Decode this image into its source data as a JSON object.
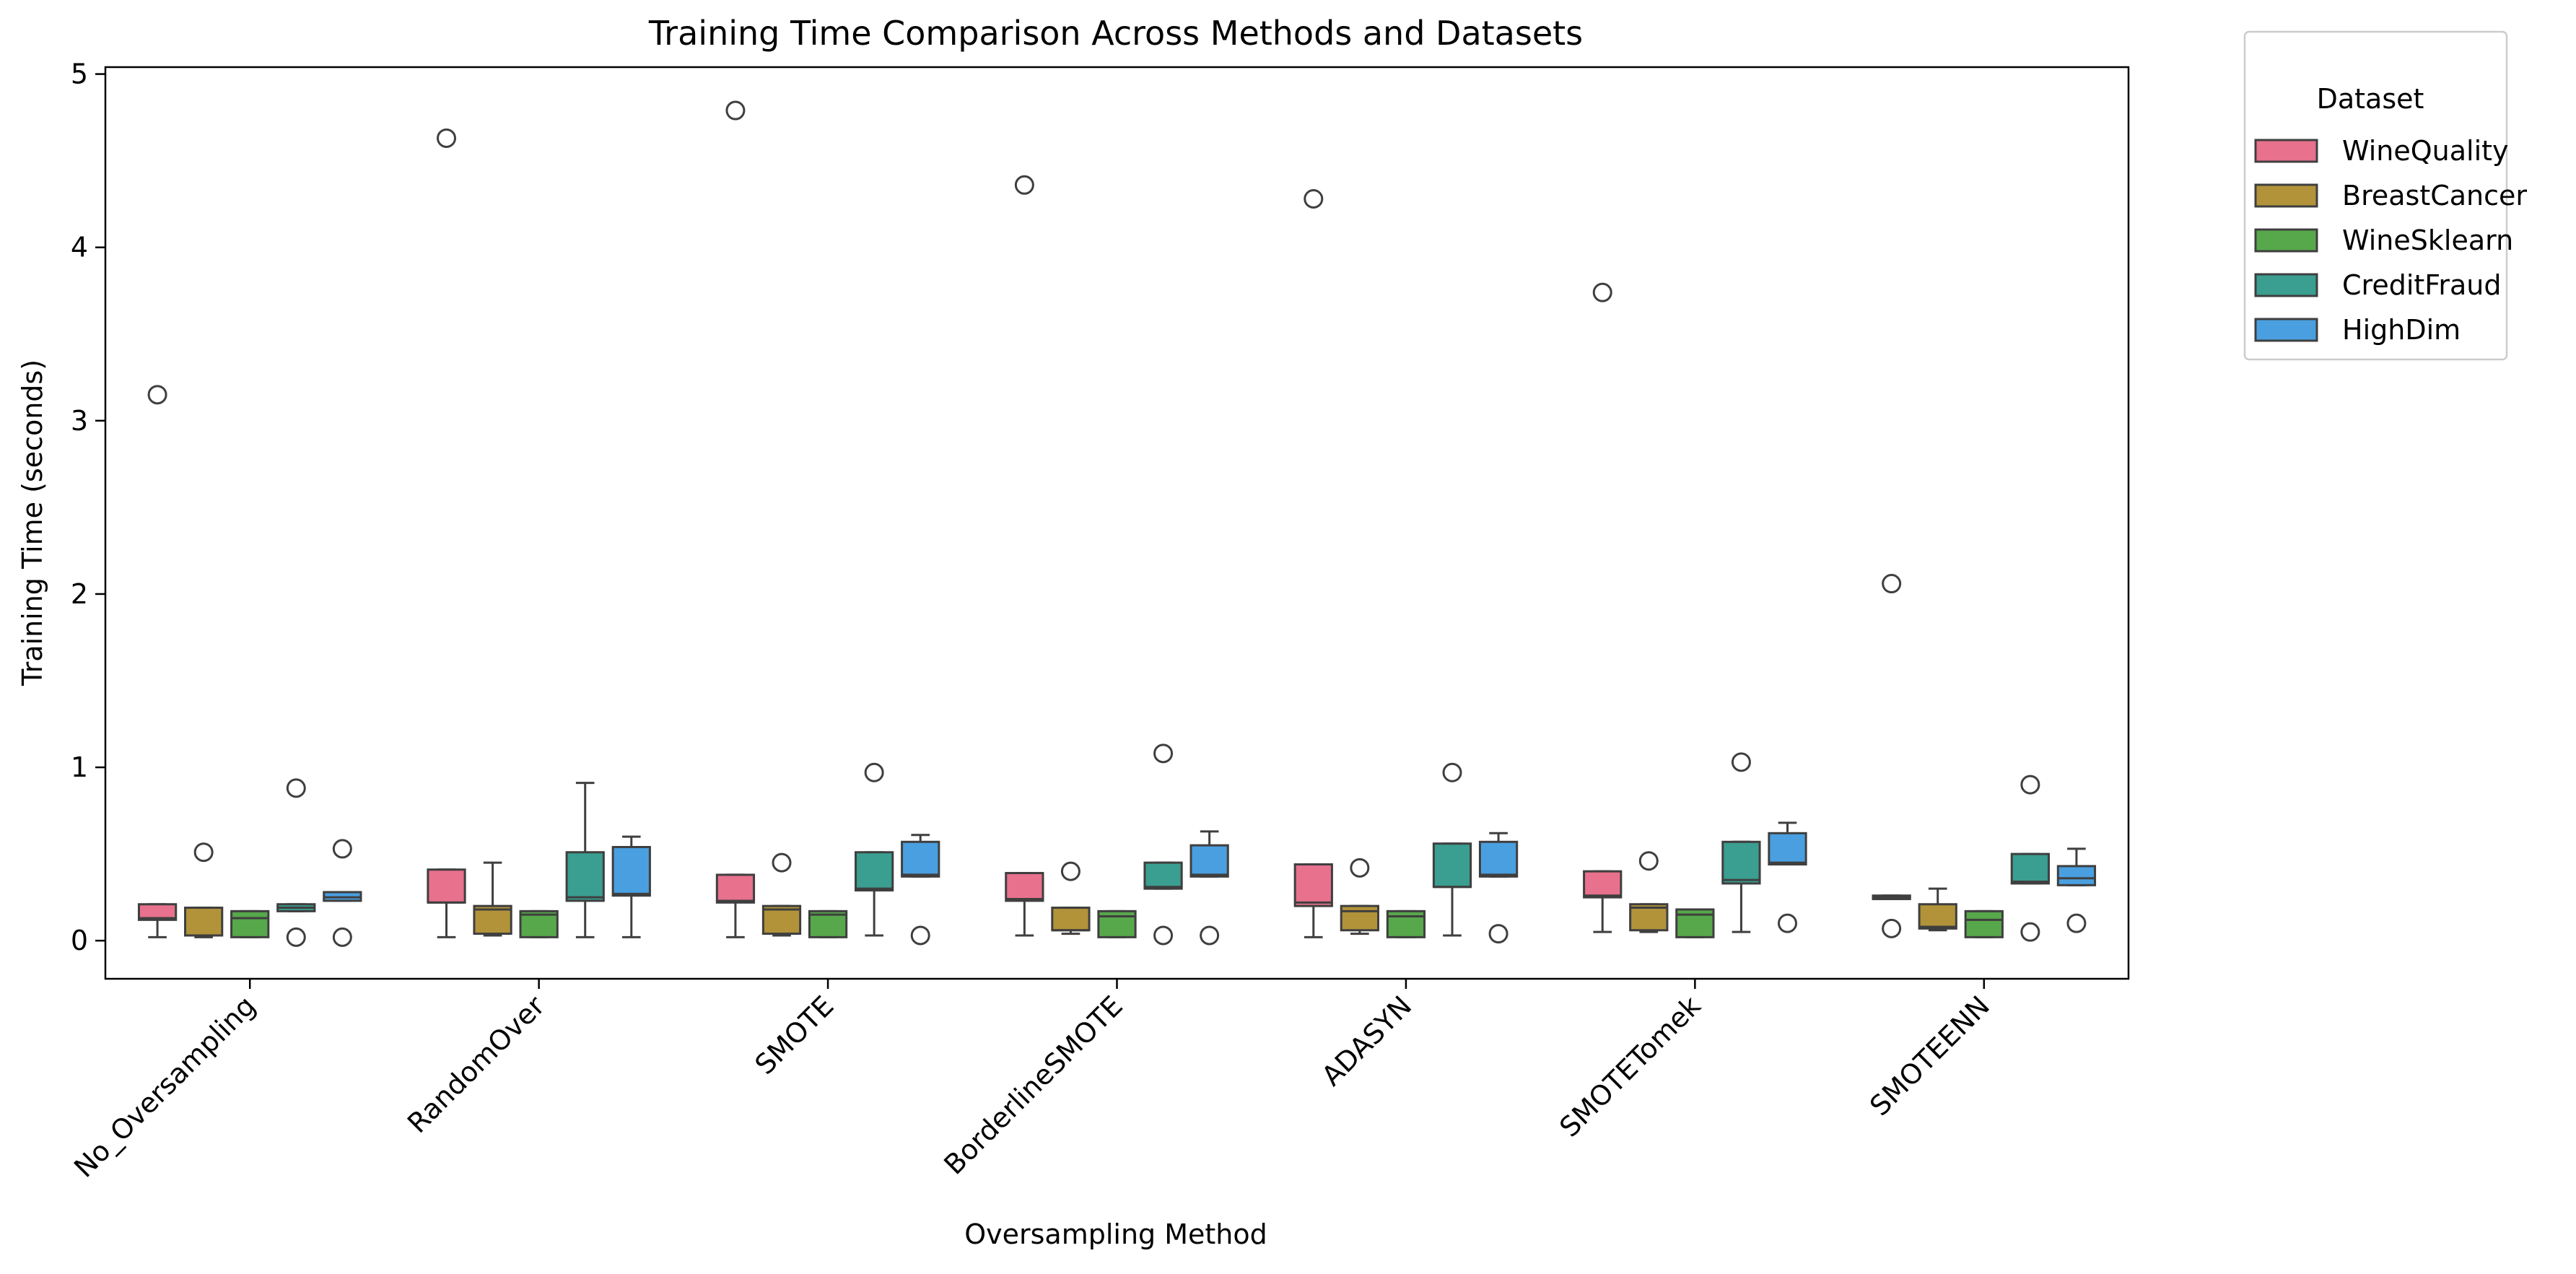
{
  "chart_data": {
    "type": "box",
    "title": "Training Time Comparison Across Methods and Datasets",
    "xlabel": "Oversampling Method",
    "ylabel": "Training Time (seconds)",
    "ylim": [
      -0.22,
      5.04
    ],
    "yticks": [
      0,
      1,
      2,
      3,
      4,
      5
    ],
    "grid": false,
    "legend": {
      "title": "Dataset",
      "position": "outside-top-right"
    },
    "categories": [
      "No_Oversampling",
      "RandomOver",
      "SMOTE",
      "BorderlineSMOTE",
      "ADASYN",
      "SMOTETomek",
      "SMOTEENN"
    ],
    "series": [
      {
        "name": "WineQuality",
        "color": "#e8718d",
        "boxes": [
          {
            "whislo": 0.02,
            "q1": 0.12,
            "med": 0.13,
            "q3": 0.21,
            "whishi": 0.21,
            "fliers": [
              3.15
            ]
          },
          {
            "whislo": 0.02,
            "q1": 0.22,
            "med": 0.22,
            "q3": 0.41,
            "whishi": 0.41,
            "fliers": [
              4.63
            ]
          },
          {
            "whislo": 0.02,
            "q1": 0.22,
            "med": 0.23,
            "q3": 0.38,
            "whishi": 0.38,
            "fliers": [
              4.79
            ]
          },
          {
            "whislo": 0.03,
            "q1": 0.23,
            "med": 0.24,
            "q3": 0.39,
            "whishi": 0.39,
            "fliers": [
              4.36
            ]
          },
          {
            "whislo": 0.02,
            "q1": 0.2,
            "med": 0.22,
            "q3": 0.44,
            "whishi": 0.44,
            "fliers": [
              4.28
            ]
          },
          {
            "whislo": 0.05,
            "q1": 0.25,
            "med": 0.26,
            "q3": 0.4,
            "whishi": 0.4,
            "fliers": [
              3.74
            ]
          },
          {
            "whislo": 0.24,
            "q1": 0.24,
            "med": 0.25,
            "q3": 0.26,
            "whishi": 0.26,
            "fliers": [
              2.06,
              0.07
            ]
          }
        ]
      },
      {
        "name": "BreastCancer",
        "color": "#b2933a",
        "boxes": [
          {
            "whislo": 0.02,
            "q1": 0.03,
            "med": 0.03,
            "q3": 0.19,
            "whishi": 0.19,
            "fliers": [
              0.51
            ]
          },
          {
            "whislo": 0.03,
            "q1": 0.04,
            "med": 0.18,
            "q3": 0.2,
            "whishi": 0.45,
            "fliers": []
          },
          {
            "whislo": 0.03,
            "q1": 0.04,
            "med": 0.18,
            "q3": 0.2,
            "whishi": 0.2,
            "fliers": [
              0.45
            ]
          },
          {
            "whislo": 0.04,
            "q1": 0.06,
            "med": 0.06,
            "q3": 0.19,
            "whishi": 0.19,
            "fliers": [
              0.4
            ]
          },
          {
            "whislo": 0.04,
            "q1": 0.06,
            "med": 0.17,
            "q3": 0.2,
            "whishi": 0.2,
            "fliers": [
              0.42
            ]
          },
          {
            "whislo": 0.05,
            "q1": 0.06,
            "med": 0.19,
            "q3": 0.21,
            "whishi": 0.21,
            "fliers": [
              0.46
            ]
          },
          {
            "whislo": 0.06,
            "q1": 0.07,
            "med": 0.08,
            "q3": 0.21,
            "whishi": 0.3,
            "fliers": []
          }
        ]
      },
      {
        "name": "WineSklearn",
        "color": "#57a84b",
        "boxes": [
          {
            "whislo": 0.02,
            "q1": 0.02,
            "med": 0.13,
            "q3": 0.17,
            "whishi": 0.17,
            "fliers": []
          },
          {
            "whislo": 0.02,
            "q1": 0.02,
            "med": 0.15,
            "q3": 0.17,
            "whishi": 0.17,
            "fliers": []
          },
          {
            "whislo": 0.02,
            "q1": 0.02,
            "med": 0.15,
            "q3": 0.17,
            "whishi": 0.17,
            "fliers": []
          },
          {
            "whislo": 0.02,
            "q1": 0.02,
            "med": 0.14,
            "q3": 0.17,
            "whishi": 0.17,
            "fliers": []
          },
          {
            "whislo": 0.02,
            "q1": 0.02,
            "med": 0.14,
            "q3": 0.17,
            "whishi": 0.17,
            "fliers": []
          },
          {
            "whislo": 0.02,
            "q1": 0.02,
            "med": 0.15,
            "q3": 0.18,
            "whishi": 0.18,
            "fliers": []
          },
          {
            "whislo": 0.02,
            "q1": 0.02,
            "med": 0.12,
            "q3": 0.17,
            "whishi": 0.17,
            "fliers": []
          }
        ]
      },
      {
        "name": "CreditFraud",
        "color": "#3a9e90",
        "boxes": [
          {
            "whislo": 0.17,
            "q1": 0.17,
            "med": 0.19,
            "q3": 0.21,
            "whishi": 0.21,
            "fliers": [
              0.88,
              0.02
            ]
          },
          {
            "whislo": 0.02,
            "q1": 0.23,
            "med": 0.25,
            "q3": 0.51,
            "whishi": 0.91,
            "fliers": []
          },
          {
            "whislo": 0.03,
            "q1": 0.29,
            "med": 0.3,
            "q3": 0.51,
            "whishi": 0.51,
            "fliers": [
              0.97
            ]
          },
          {
            "whislo": 0.3,
            "q1": 0.3,
            "med": 0.31,
            "q3": 0.45,
            "whishi": 0.45,
            "fliers": [
              1.08,
              0.03
            ]
          },
          {
            "whislo": 0.03,
            "q1": 0.31,
            "med": 0.31,
            "q3": 0.56,
            "whishi": 0.56,
            "fliers": [
              0.97
            ]
          },
          {
            "whislo": 0.05,
            "q1": 0.33,
            "med": 0.35,
            "q3": 0.57,
            "whishi": 0.57,
            "fliers": [
              1.03
            ]
          },
          {
            "whislo": 0.33,
            "q1": 0.33,
            "med": 0.34,
            "q3": 0.5,
            "whishi": 0.5,
            "fliers": [
              0.9,
              0.05
            ]
          }
        ]
      },
      {
        "name": "HighDim",
        "color": "#4a9fe0",
        "boxes": [
          {
            "whislo": 0.23,
            "q1": 0.23,
            "med": 0.25,
            "q3": 0.28,
            "whishi": 0.28,
            "fliers": [
              0.53,
              0.02
            ]
          },
          {
            "whislo": 0.02,
            "q1": 0.26,
            "med": 0.27,
            "q3": 0.54,
            "whishi": 0.6,
            "fliers": []
          },
          {
            "whislo": 0.37,
            "q1": 0.37,
            "med": 0.38,
            "q3": 0.57,
            "whishi": 0.61,
            "fliers": [
              0.03
            ]
          },
          {
            "whislo": 0.37,
            "q1": 0.37,
            "med": 0.38,
            "q3": 0.55,
            "whishi": 0.63,
            "fliers": [
              0.03
            ]
          },
          {
            "whislo": 0.37,
            "q1": 0.37,
            "med": 0.38,
            "q3": 0.57,
            "whishi": 0.62,
            "fliers": [
              0.04
            ]
          },
          {
            "whislo": 0.44,
            "q1": 0.44,
            "med": 0.45,
            "q3": 0.62,
            "whishi": 0.68,
            "fliers": [
              0.1
            ]
          },
          {
            "whislo": 0.32,
            "q1": 0.32,
            "med": 0.36,
            "q3": 0.43,
            "whishi": 0.53,
            "fliers": [
              0.1
            ]
          }
        ]
      }
    ]
  }
}
